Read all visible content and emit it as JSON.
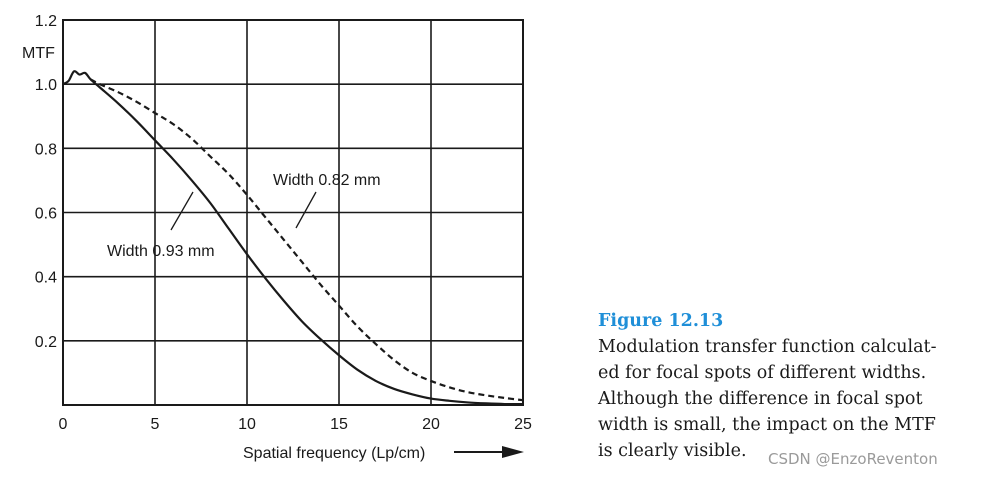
{
  "chart_data": {
    "type": "line",
    "title": "",
    "xlabel": "Spatial frequency (Lp/cm)",
    "ylabel": "MTF",
    "xlim": [
      0,
      25
    ],
    "ylim": [
      0,
      1.2
    ],
    "xticks": [
      0,
      5,
      10,
      15,
      20,
      25
    ],
    "xtick_labels": [
      "0",
      "5",
      "10",
      "15",
      "20",
      "25"
    ],
    "yticks": [
      0.2,
      0.4,
      0.6,
      0.8,
      1.0,
      1.2
    ],
    "ytick_labels": [
      "0.2",
      "0.4",
      "0.6",
      "0.8",
      "1.0",
      "1.2"
    ],
    "grid": true,
    "series": [
      {
        "name": "Width 0.93 mm",
        "style": "solid",
        "x": [
          0,
          0.3,
          0.6,
          0.9,
          1.2,
          1.5,
          2,
          3,
          4,
          5,
          6,
          7,
          8,
          9,
          10,
          11,
          12,
          13,
          14,
          15,
          16,
          17,
          18,
          19,
          20,
          21,
          22,
          23,
          24,
          25
        ],
        "y": [
          1.0,
          1.01,
          1.04,
          1.03,
          1.035,
          1.015,
          0.99,
          0.94,
          0.885,
          0.825,
          0.765,
          0.7,
          0.63,
          0.55,
          0.47,
          0.395,
          0.325,
          0.26,
          0.205,
          0.155,
          0.11,
          0.075,
          0.05,
          0.033,
          0.02,
          0.013,
          0.008,
          0.005,
          0.003,
          0.003
        ]
      },
      {
        "name": "Width 0.82 mm",
        "style": "dashed",
        "x": [
          1.5,
          2,
          3,
          4,
          5,
          6,
          7,
          8,
          9,
          10,
          11,
          12,
          13,
          14,
          15,
          16,
          17,
          18,
          19,
          20,
          21,
          22,
          23,
          24,
          25
        ],
        "y": [
          1.015,
          1.0,
          0.975,
          0.945,
          0.91,
          0.875,
          0.83,
          0.775,
          0.72,
          0.655,
          0.585,
          0.515,
          0.445,
          0.375,
          0.31,
          0.245,
          0.19,
          0.14,
          0.1,
          0.075,
          0.055,
          0.04,
          0.03,
          0.022,
          0.015
        ]
      }
    ],
    "annotations": [
      {
        "text": "Width 0.82 mm",
        "series": 1
      },
      {
        "text": "Width 0.93 mm",
        "series": 0
      }
    ],
    "colors": {
      "line": "#1a1a1a",
      "grid": "#1a1a1a",
      "arrow": "#1a1a1a"
    }
  },
  "caption": {
    "title": "Figure 12.13",
    "lines": [
      "Modulation transfer function calculat-",
      "ed for focal spots of different widths.",
      "Although the difference in focal spot",
      "width is small, the impact on the MTF",
      "is clearly visible."
    ]
  },
  "watermark": "CSDN @EnzoReventon"
}
